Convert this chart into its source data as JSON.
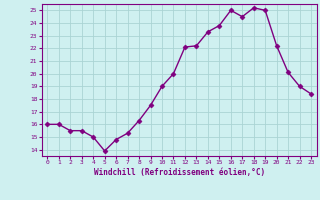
{
  "x": [
    0,
    1,
    2,
    3,
    4,
    5,
    6,
    7,
    8,
    9,
    10,
    11,
    12,
    13,
    14,
    15,
    16,
    17,
    18,
    19,
    20,
    21,
    22,
    23
  ],
  "y": [
    16.0,
    16.0,
    15.5,
    15.5,
    15.0,
    13.9,
    14.8,
    15.3,
    16.3,
    17.5,
    19.0,
    20.0,
    22.1,
    22.2,
    23.3,
    23.8,
    25.0,
    24.5,
    25.2,
    25.0,
    22.2,
    20.1,
    19.0,
    18.4
  ],
  "line_color": "#800080",
  "marker": "D",
  "markersize": 2.5,
  "linewidth": 1.0,
  "bg_color": "#cff0f0",
  "grid_color": "#aad4d4",
  "xlabel": "Windchill (Refroidissement éolien,°C)",
  "xlabel_color": "#800080",
  "tick_color": "#800080",
  "axis_color": "#800080",
  "ylim": [
    13.5,
    25.5
  ],
  "xlim": [
    -0.5,
    23.5
  ],
  "yticks": [
    14,
    15,
    16,
    17,
    18,
    19,
    20,
    21,
    22,
    23,
    24,
    25
  ],
  "xticks": [
    0,
    1,
    2,
    3,
    4,
    5,
    6,
    7,
    8,
    9,
    10,
    11,
    12,
    13,
    14,
    15,
    16,
    17,
    18,
    19,
    20,
    21,
    22,
    23
  ],
  "xtick_labels": [
    "0",
    "1",
    "2",
    "3",
    "4",
    "5",
    "6",
    "7",
    "8",
    "9",
    "10",
    "11",
    "12",
    "13",
    "14",
    "15",
    "16",
    "17",
    "18",
    "19",
    "20",
    "21",
    "22",
    "23"
  ]
}
